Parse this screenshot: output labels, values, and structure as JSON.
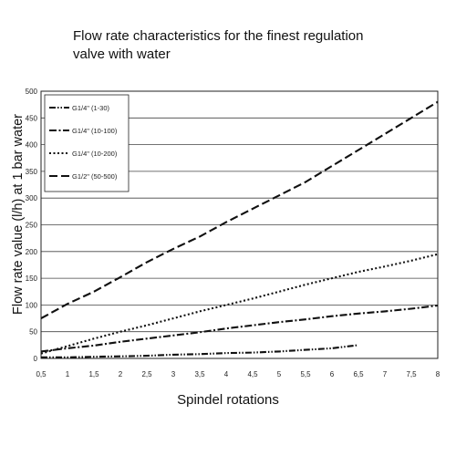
{
  "chart_data": {
    "type": "line",
    "title_line1": "Flow rate characteristics for the finest regulation",
    "title_line2": "valve with water",
    "xlabel": "Spindel rotations",
    "ylabel": "Flow rate value (l/h) at 1 bar water",
    "xlim": [
      0.5,
      8
    ],
    "ylim": [
      0,
      500
    ],
    "x_ticks": [
      "0,5",
      "1",
      "1,5",
      "2",
      "2,5",
      "3",
      "3,5",
      "4",
      "4,5",
      "5",
      "5,5",
      "6",
      "6,5",
      "7",
      "7,5",
      "8"
    ],
    "y_ticks": [
      "0",
      "50",
      "100",
      "150",
      "200",
      "250",
      "300",
      "350",
      "400",
      "450",
      "500"
    ],
    "grid": "horizontal",
    "legend_position": "top-left",
    "series": [
      {
        "name": "G1/4\" (1-30)",
        "dash": "dash-dot-dot",
        "points": [
          [
            0.5,
            2
          ],
          [
            1,
            2
          ],
          [
            1.5,
            3
          ],
          [
            2,
            4
          ],
          [
            2.5,
            5
          ],
          [
            3,
            7
          ],
          [
            3.5,
            8
          ],
          [
            4,
            10
          ],
          [
            4.5,
            11
          ],
          [
            5,
            13
          ],
          [
            5.5,
            16
          ],
          [
            6,
            19
          ],
          [
            6.5,
            25
          ]
        ]
      },
      {
        "name": "G1/4\" (10-100)",
        "dash": "dash-dot",
        "points": [
          [
            0.5,
            13
          ],
          [
            1,
            19
          ],
          [
            1.5,
            24
          ],
          [
            2,
            31
          ],
          [
            2.5,
            37
          ],
          [
            3,
            43
          ],
          [
            3.5,
            49
          ],
          [
            4,
            56
          ],
          [
            4.5,
            62
          ],
          [
            5,
            68
          ],
          [
            5.5,
            73
          ],
          [
            6,
            79
          ],
          [
            6.5,
            84
          ],
          [
            7,
            88
          ],
          [
            7.5,
            93
          ],
          [
            8,
            99
          ]
        ]
      },
      {
        "name": "G1/4\" (10-200)",
        "dash": "dotted",
        "points": [
          [
            0.5,
            9
          ],
          [
            1,
            23
          ],
          [
            1.5,
            37
          ],
          [
            2,
            50
          ],
          [
            2.5,
            62
          ],
          [
            3,
            75
          ],
          [
            3.5,
            88
          ],
          [
            4,
            100
          ],
          [
            4.5,
            112
          ],
          [
            5,
            125
          ],
          [
            5.5,
            138
          ],
          [
            6,
            150
          ],
          [
            6.5,
            162
          ],
          [
            7,
            172
          ],
          [
            7.5,
            183
          ],
          [
            8,
            195
          ]
        ]
      },
      {
        "name": "G1/2\" (50-500)",
        "dash": "dashed",
        "points": [
          [
            0.5,
            75
          ],
          [
            1,
            102
          ],
          [
            1.5,
            125
          ],
          [
            2,
            152
          ],
          [
            2.5,
            180
          ],
          [
            3,
            205
          ],
          [
            3.5,
            228
          ],
          [
            4,
            255
          ],
          [
            4.5,
            280
          ],
          [
            5,
            305
          ],
          [
            5.5,
            330
          ],
          [
            6,
            360
          ],
          [
            6.5,
            390
          ],
          [
            7,
            420
          ],
          [
            7.5,
            450
          ],
          [
            8,
            480
          ]
        ]
      }
    ]
  }
}
